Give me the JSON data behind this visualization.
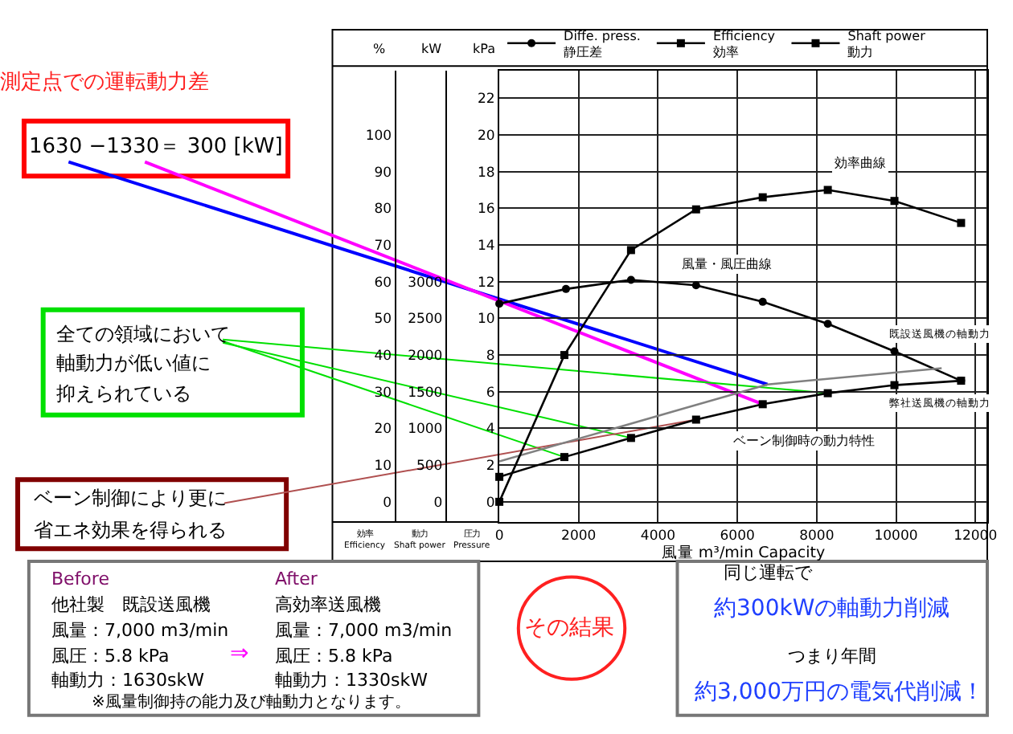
{
  "chart_data": {
    "type": "line",
    "xlabel": "風量 m³/min Capacity",
    "ylabel": "圧力\nPressure",
    "y2label": "動力\nShaft power",
    "y3label": "効率\nEfficiency",
    "xlim": [
      0,
      12300
    ],
    "xticks": [
      0,
      2000,
      4000,
      6000,
      8000,
      10000,
      12000
    ],
    "ylim": [
      -1.1,
      23.5
    ],
    "yticks": [
      0,
      2,
      4,
      6,
      8,
      10,
      12,
      14,
      16,
      18,
      20,
      22
    ],
    "y2lim": [
      -275,
      5875
    ],
    "y2ticks": [
      0,
      500,
      1000,
      1500,
      2000,
      2500,
      3000
    ],
    "y3lim": [
      -5.5,
      117.5
    ],
    "y3ticks": [
      0,
      10,
      20,
      30,
      40,
      50,
      60,
      70,
      80,
      90,
      100
    ],
    "grid": true,
    "legend": "top",
    "series": [
      {
        "name": "Diffe. press.\n静圧差",
        "color": "#000000",
        "marker": "circle",
        "x": [
          0,
          1680,
          3320,
          4960,
          6640,
          8280,
          9960,
          11640
        ],
        "values": [
          10.8,
          11.6,
          12.1,
          11.8,
          10.9,
          9.7,
          8.2,
          6.6
        ]
      },
      {
        "name": "Efficiency\n効率",
        "color": "#000000",
        "marker": "square",
        "axis": "y3",
        "x": [
          0,
          1640,
          3320,
          4960,
          6640,
          8280,
          9960,
          11640
        ],
        "values": [
          0,
          40,
          68.6,
          79.7,
          83,
          85,
          82,
          76
        ]
      },
      {
        "name": "Shaft power\n動力",
        "color": "#000000",
        "marker": "square",
        "axis": "y2",
        "x": [
          0,
          1640,
          3320,
          4960,
          6640,
          8280,
          9960,
          11640
        ],
        "values": [
          340,
          610,
          870,
          1120,
          1330,
          1480,
          1590,
          1650
        ]
      },
      {
        "color": "#808080",
        "marker": "none",
        "axis": "y2",
        "x": [
          0,
          6760,
          11150
        ],
        "values": [
          550,
          1600,
          1820
        ]
      }
    ],
    "annotations": [
      "%",
      "kW",
      "kPa",
      "測定点での運転動力差",
      "全ての領域において",
      "軸動力が低い値に",
      "抑えられている",
      "Before",
      "他社製　既設送風機",
      "風量：7,000 m3/min",
      "風圧：5.8 kPa",
      "軸動力：1630skW",
      "⇒",
      "After",
      "高効率送風機",
      "風量：7,000 m3/min",
      "風圧：5.8 kPa",
      "軸動力：1330skW",
      "※風量制御持の能力及び軸動力となります。",
      "その結果",
      "同じ運転で",
      "約300kWの軸動力削減",
      "つまり年間",
      "約3,000万円の電気代削減！",
      "ベーン制御により更に",
      "省エネ効果を得られる",
      "効率曲線",
      "風量・風圧曲線",
      "既設送風機の軸動力",
      "弊社送風機の軸動力",
      "ベーン制御時の動力特性",
      "1630 −1330＝ 300 [kW]"
    ]
  }
}
